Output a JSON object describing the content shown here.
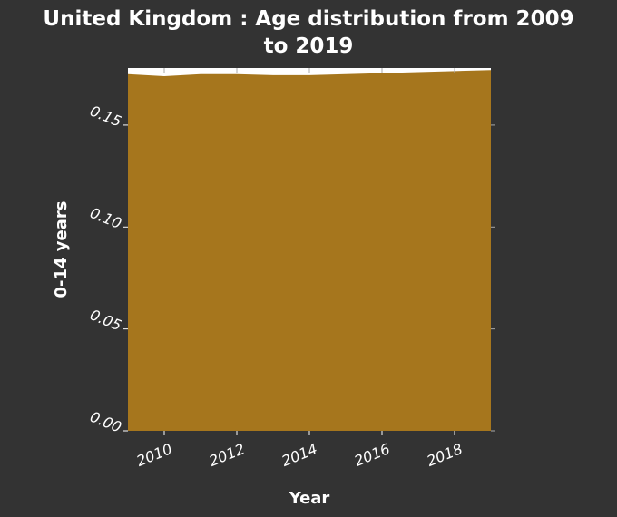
{
  "chart_data": {
    "type": "area",
    "title_lines": [
      "United Kingdom : Age distribution from 2009",
      "to 2019"
    ],
    "xlabel": "Year",
    "ylabel": "0-14 years",
    "x": [
      2009,
      2010,
      2011,
      2012,
      2013,
      2014,
      2015,
      2016,
      2017,
      2018,
      2019
    ],
    "y": [
      0.175,
      0.174,
      0.175,
      0.175,
      0.1745,
      0.1745,
      0.175,
      0.1755,
      0.176,
      0.1765,
      0.177
    ],
    "xlim": [
      2009,
      2019
    ],
    "ylim": [
      0.0,
      0.178
    ],
    "xticks": [
      2010,
      2012,
      2014,
      2016,
      2018
    ],
    "yticks": [
      0.0,
      0.05,
      0.1,
      0.15
    ],
    "ytick_labels": [
      "0.00",
      "0.05",
      "0.10",
      "0.15"
    ],
    "fill_color": "#a6761d",
    "background_color": "#333333",
    "axes_color": "#ffffff",
    "grid": false
  }
}
